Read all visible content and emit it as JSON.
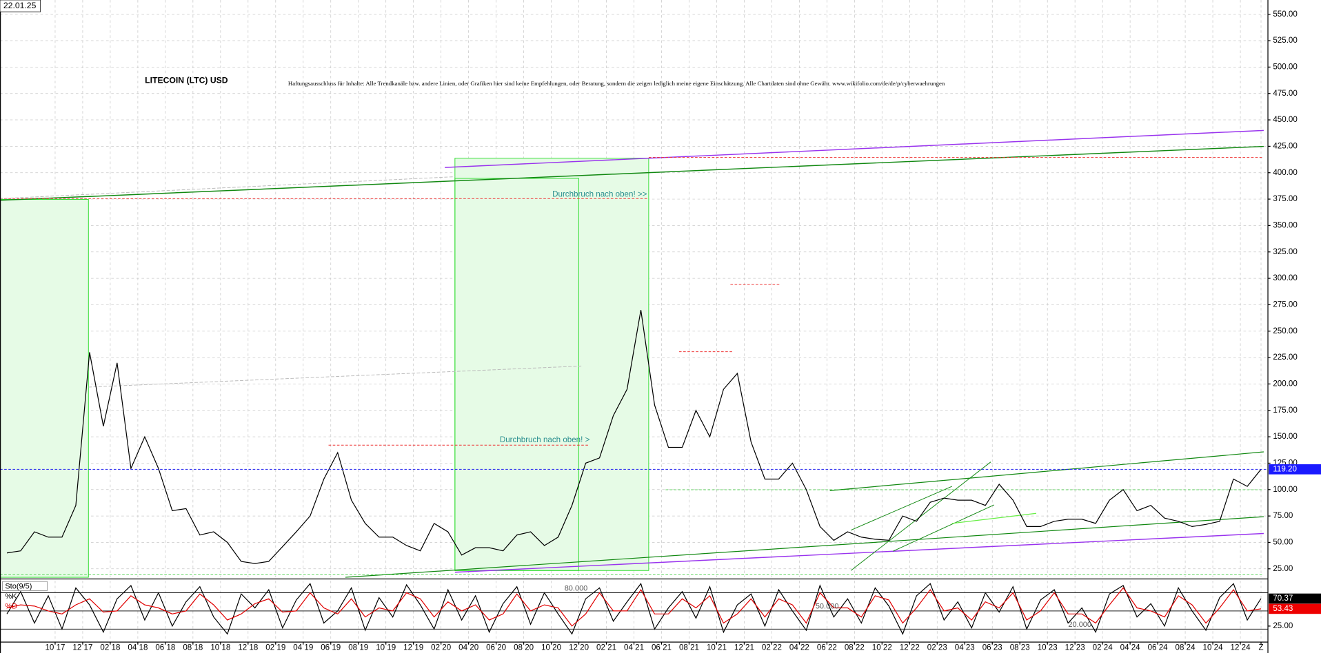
{
  "chart_data": [
    {
      "type": "line",
      "title": "LITECOIN (LTC) USD",
      "date": "22.01.25",
      "disclaimer": "Haftungsausschluss für Inhalte: Alle Trendkanäle bzw. andere Linien, oder Grafiken hier sind keine Empfehlungen, oder Beratung, sondern die zeigen lediglich meine eigene Einschätzung. Alle Chartdaten sind ohne Gewähr.  www.wikifolio.com/de/de/p/cyberwaehrungen",
      "annotations": [
        "Durchbruch nach oben! >>",
        "Durchbruch nach oben! >"
      ],
      "series": [
        {
          "color": "#000000",
          "values": [
            40,
            42,
            60,
            55,
            55,
            85,
            230,
            160,
            220,
            120,
            150,
            120,
            80,
            82,
            57,
            60,
            50,
            32,
            30,
            32,
            46,
            60,
            75,
            110,
            135,
            90,
            68,
            55,
            55,
            47,
            42,
            68,
            60,
            38,
            45,
            45,
            42,
            57,
            60,
            47,
            55,
            85,
            125,
            130,
            170,
            195,
            270,
            180,
            140,
            140,
            175,
            150,
            195,
            210,
            145,
            110,
            110,
            125,
            100,
            65,
            52,
            60,
            55,
            53,
            52,
            75,
            70,
            88,
            92,
            90,
            90,
            85,
            105,
            90,
            65,
            65,
            70,
            72,
            72,
            68,
            90,
            100,
            80,
            85,
            73,
            70,
            65,
            67,
            70,
            110,
            103,
            119.2
          ]
        }
      ],
      "last_price_label": "119.20",
      "xlim": [
        0,
        92
      ],
      "xticks": [
        {
          "value": 4,
          "label": "10 17"
        },
        {
          "value": 6,
          "label": "12 17"
        },
        {
          "value": 8,
          "label": "02 18"
        },
        {
          "value": 10,
          "label": "04 18"
        },
        {
          "value": 12,
          "label": "06 18"
        },
        {
          "value": 14,
          "label": "08 18"
        },
        {
          "value": 16,
          "label": "10 18"
        },
        {
          "value": 18,
          "label": "12 18"
        },
        {
          "value": 20,
          "label": "02 19"
        },
        {
          "value": 22,
          "label": "04 19"
        },
        {
          "value": 24,
          "label": "06 19"
        },
        {
          "value": 26,
          "label": "08 19"
        },
        {
          "value": 28,
          "label": "10 19"
        },
        {
          "value": 30,
          "label": "12 19"
        },
        {
          "value": 32,
          "label": "02 20"
        },
        {
          "value": 34,
          "label": "04 20"
        },
        {
          "value": 36,
          "label": "06 20"
        },
        {
          "value": 38,
          "label": "08 20"
        },
        {
          "value": 40,
          "label": "10 20"
        },
        {
          "value": 42,
          "label": "12 20"
        },
        {
          "value": 44,
          "label": "02 21"
        },
        {
          "value": 46,
          "label": "04 21"
        },
        {
          "value": 48,
          "label": "06 21"
        },
        {
          "value": 50,
          "label": "08 21"
        },
        {
          "value": 52,
          "label": "10 21"
        },
        {
          "value": 54,
          "label": "12 21"
        },
        {
          "value": 56,
          "label": "02 22"
        },
        {
          "value": 58,
          "label": "04 22"
        },
        {
          "value": 60,
          "label": "06 22"
        },
        {
          "value": 62,
          "label": "08 22"
        },
        {
          "value": 64,
          "label": "10 22"
        },
        {
          "value": 66,
          "label": "12 22"
        },
        {
          "value": 68,
          "label": "02 23"
        },
        {
          "value": 70,
          "label": "04 23"
        },
        {
          "value": 72,
          "label": "06 23"
        },
        {
          "value": 74,
          "label": "08 23"
        },
        {
          "value": 76,
          "label": "10 23"
        },
        {
          "value": 78,
          "label": "12 23"
        },
        {
          "value": 80,
          "label": "02 24"
        },
        {
          "value": 82,
          "label": "04 24"
        },
        {
          "value": 84,
          "label": "06 24"
        },
        {
          "value": 86,
          "label": "08 24"
        },
        {
          "value": 88,
          "label": "10 24"
        },
        {
          "value": 90,
          "label": "12 24"
        },
        {
          "value": 91.5,
          "label": "Z"
        }
      ],
      "ylim": [
        17,
        563.5
      ],
      "yticks": [
        {
          "value": 25,
          "label": "25.00"
        },
        {
          "value": 50,
          "label": "50.00"
        },
        {
          "value": 75,
          "label": "75.00"
        },
        {
          "value": 100,
          "label": "100.00"
        },
        {
          "value": 125,
          "label": "125.00"
        },
        {
          "value": 150,
          "label": "150.00"
        },
        {
          "value": 175,
          "label": "175.00"
        },
        {
          "value": 200,
          "label": "200.00"
        },
        {
          "value": 225,
          "label": "225.00"
        },
        {
          "value": 250,
          "label": "250.00"
        },
        {
          "value": 275,
          "label": "275.00"
        },
        {
          "value": 300,
          "label": "300.00"
        },
        {
          "value": 325,
          "label": "325.00"
        },
        {
          "value": 350,
          "label": "350.00"
        },
        {
          "value": 375,
          "label": "375.00"
        },
        {
          "value": 400,
          "label": "400.00"
        },
        {
          "value": 425,
          "label": "425.00"
        },
        {
          "value": 450,
          "label": "450.00"
        },
        {
          "value": 475,
          "label": "475.00"
        },
        {
          "value": 500,
          "label": "500.00"
        },
        {
          "value": 525,
          "label": "525.00"
        },
        {
          "value": 550,
          "label": "550.00"
        }
      ],
      "grid": true
    },
    {
      "type": "line",
      "title": "Sto(9/5)",
      "series": [
        {
          "name": "%K",
          "color": "#000000",
          "values": [
            45,
            82,
            30,
            75,
            20,
            88,
            60,
            15,
            70,
            92,
            35,
            80,
            25,
            65,
            90,
            40,
            12,
            78,
            55,
            85,
            22,
            68,
            95,
            30,
            50,
            88,
            18,
            72,
            40,
            93,
            60,
            20,
            85,
            35,
            75,
            15,
            62,
            90,
            28,
            80,
            45,
            12,
            70,
            88,
            33,
            65,
            95,
            20,
            55,
            82,
            38,
            90,
            15,
            60,
            78,
            25,
            85,
            50,
            18,
            92,
            40,
            70,
            30,
            88,
            58,
            12,
            75,
            95,
            35,
            65,
            22,
            80,
            48,
            90,
            20,
            68,
            85,
            30,
            55,
            15,
            78,
            92,
            40,
            62,
            25,
            88,
            50,
            18,
            72,
            95,
            35,
            70.37
          ]
        },
        {
          "name": "%D",
          "color": "#e00000",
          "values": [
            55,
            60,
            58,
            50,
            45,
            60,
            70,
            48,
            50,
            75,
            60,
            55,
            45,
            50,
            78,
            60,
            35,
            45,
            62,
            70,
            48,
            50,
            80,
            55,
            45,
            70,
            40,
            55,
            50,
            80,
            70,
            40,
            65,
            50,
            60,
            35,
            45,
            78,
            50,
            60,
            55,
            25,
            45,
            80,
            50,
            50,
            85,
            45,
            45,
            70,
            55,
            75,
            30,
            45,
            70,
            40,
            70,
            60,
            30,
            80,
            55,
            55,
            40,
            75,
            68,
            30,
            55,
            85,
            50,
            55,
            35,
            65,
            55,
            80,
            35,
            50,
            80,
            45,
            45,
            30,
            60,
            88,
            55,
            50,
            40,
            75,
            60,
            30,
            55,
            85,
            50,
            53.43
          ]
        }
      ],
      "ylim": [
        0,
        100
      ],
      "yticks": [
        {
          "value": 25,
          "label": "25.00"
        }
      ],
      "levels": [
        {
          "value": 80,
          "label": "80.000"
        },
        {
          "value": 50,
          "label": "50.000"
        },
        {
          "value": 20,
          "label": "20.000"
        }
      ]
    }
  ]
}
